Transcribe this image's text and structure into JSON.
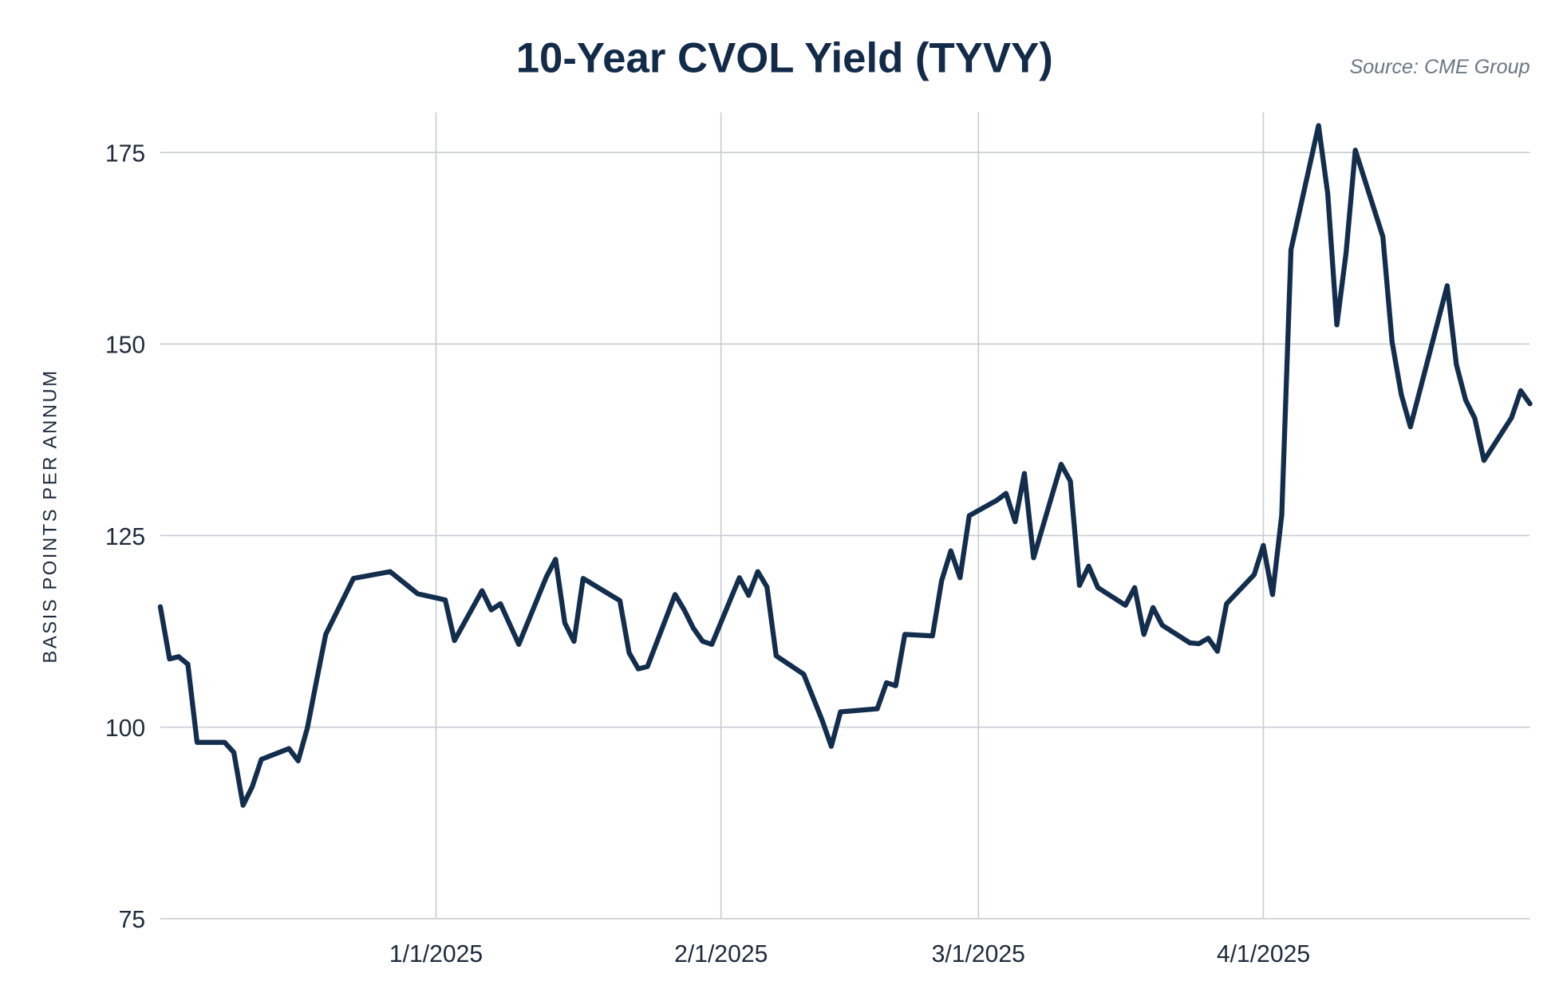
{
  "chart_data": {
    "type": "line",
    "title": "10-Year CVOL Yield (TYVY)",
    "source": "Source: CME Group",
    "xlabel": "",
    "ylabel": "BASIS POINTS PER ANNUM",
    "ylim": [
      75,
      180
    ],
    "yticks": [
      75,
      100,
      125,
      150,
      175
    ],
    "ytick_labels": [
      "75",
      "100",
      "125",
      "150",
      "175"
    ],
    "xlim": [
      "2024-12-02",
      "2025-04-30"
    ],
    "xticks": [
      "2025-01-01",
      "2025-02-01",
      "2025-03-01",
      "2025-04-01"
    ],
    "xtick_labels": [
      "1/1/2025",
      "2/1/2025",
      "3/1/2025",
      "4/1/2025"
    ],
    "grid": true,
    "line_color": "#132d4d",
    "series": [
      {
        "name": "TYVY",
        "x": [
          "2024-12-02",
          "2024-12-03",
          "2024-12-04",
          "2024-12-05",
          "2024-12-06",
          "2024-12-09",
          "2024-12-10",
          "2024-12-11",
          "2024-12-12",
          "2024-12-13",
          "2024-12-16",
          "2024-12-17",
          "2024-12-18",
          "2024-12-19",
          "2024-12-20",
          "2024-12-23",
          "2024-12-27",
          "2024-12-30",
          "2025-01-02",
          "2025-01-03",
          "2025-01-06",
          "2025-01-07",
          "2025-01-08",
          "2025-01-10",
          "2025-01-13",
          "2025-01-14",
          "2025-01-15",
          "2025-01-16",
          "2025-01-17",
          "2025-01-21",
          "2025-01-22",
          "2025-01-23",
          "2025-01-24",
          "2025-01-27",
          "2025-01-28",
          "2025-01-29",
          "2025-01-30",
          "2025-01-31",
          "2025-02-03",
          "2025-02-04",
          "2025-02-05",
          "2025-02-06",
          "2025-02-07",
          "2025-02-10",
          "2025-02-12",
          "2025-02-13",
          "2025-02-14",
          "2025-02-18",
          "2025-02-19",
          "2025-02-20",
          "2025-02-21",
          "2025-02-24",
          "2025-02-25",
          "2025-02-26",
          "2025-02-27",
          "2025-02-28",
          "2025-03-03",
          "2025-03-04",
          "2025-03-05",
          "2025-03-06",
          "2025-03-07",
          "2025-03-10",
          "2025-03-11",
          "2025-03-12",
          "2025-03-13",
          "2025-03-14",
          "2025-03-17",
          "2025-03-18",
          "2025-03-19",
          "2025-03-20",
          "2025-03-21",
          "2025-03-24",
          "2025-03-25",
          "2025-03-26",
          "2025-03-27",
          "2025-03-28",
          "2025-03-31",
          "2025-04-01",
          "2025-04-02",
          "2025-04-03",
          "2025-04-04",
          "2025-04-07",
          "2025-04-08",
          "2025-04-09",
          "2025-04-10",
          "2025-04-11",
          "2025-04-14",
          "2025-04-15",
          "2025-04-16",
          "2025-04-17",
          "2025-04-21",
          "2025-04-22",
          "2025-04-23",
          "2025-04-24",
          "2025-04-25",
          "2025-04-28",
          "2025-04-29",
          "2025-04-30"
        ],
        "values": [
          115.7,
          108.9,
          109.2,
          108.2,
          98.0,
          98.0,
          96.7,
          89.8,
          92.2,
          95.8,
          97.2,
          95.6,
          99.9,
          106.1,
          112.1,
          119.4,
          120.3,
          117.4,
          116.6,
          111.3,
          117.8,
          115.3,
          116.1,
          110.8,
          119.6,
          121.9,
          113.6,
          111.2,
          119.4,
          116.5,
          109.7,
          107.6,
          107.9,
          117.3,
          115.3,
          112.9,
          111.2,
          110.8,
          119.5,
          117.2,
          120.3,
          118.3,
          109.3,
          106.9,
          100.9,
          97.5,
          102.0,
          102.4,
          105.8,
          105.4,
          112.1,
          111.9,
          119.1,
          123.0,
          119.5,
          127.6,
          129.6,
          130.5,
          126.8,
          133.1,
          122.1,
          134.3,
          132.1,
          118.5,
          121.0,
          118.2,
          115.9,
          118.2,
          112.1,
          115.6,
          113.3,
          111.0,
          110.9,
          111.6,
          109.9,
          116.1,
          119.9,
          123.7,
          117.3,
          127.7,
          162.3,
          178.5,
          169.6,
          152.5,
          161.9,
          175.3,
          164.0,
          150.3,
          143.4,
          139.2,
          157.6,
          147.3,
          142.7,
          140.3,
          134.8,
          140.4,
          143.9,
          142.2
        ]
      }
    ]
  }
}
